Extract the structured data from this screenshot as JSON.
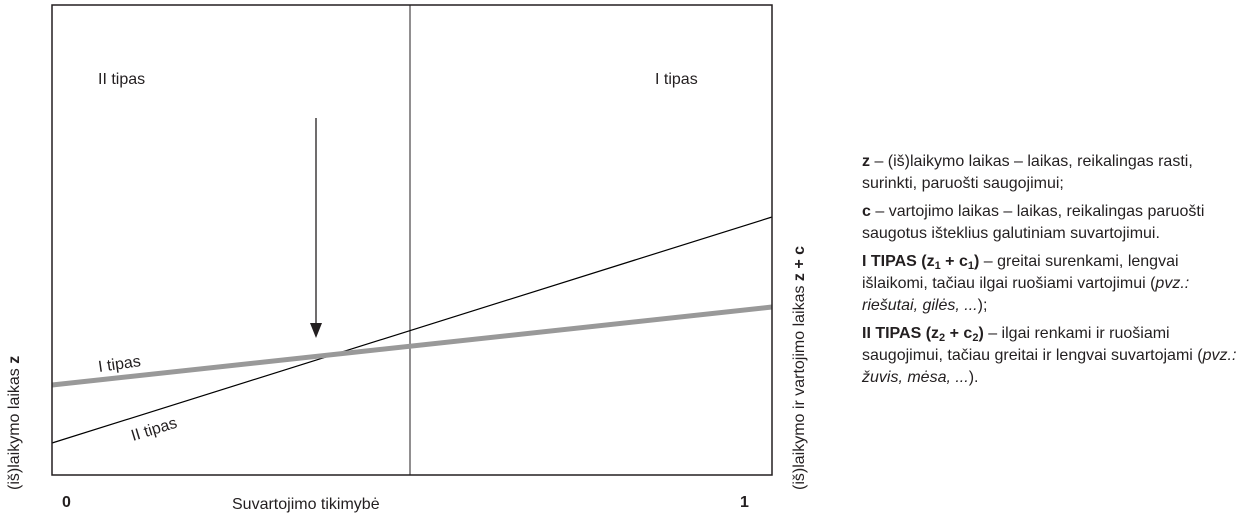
{
  "diagram": {
    "region_left": "II tipas",
    "region_right": "I tipas",
    "y_axis_left": {
      "text": "(iš)laikymo laikas ",
      "bold": "z"
    },
    "y_axis_right": {
      "text": "(iš)laikymo ir vartojimo laikas ",
      "bold": "z + c"
    },
    "x_axis_label": "Suvartojimo tikimybė",
    "x_tick_0": "0",
    "x_tick_1": "1",
    "line_I_label": "I tipas",
    "line_II_label": "II tipas",
    "colors": {
      "line_I": "#999999",
      "line_II": "#000000",
      "frame": "#231f20"
    }
  },
  "legend": {
    "z_sym": "z",
    "z_text": " – (iš)laikymo laikas – laikas, reikalingas rasti, surinkti, paruošti saugojimui;",
    "c_sym": "c",
    "c_text": " – vartojimo laikas – laikas, reikalingas paruošti saugotus išteklius galutiniam suvartojimui.",
    "t1": {
      "title": "I TIPAS (z",
      "sub1": "1",
      "plus": " + c",
      "sub2": "1",
      "close": ")",
      "text": " – greitai surenkami, lengvai išlaikomi, tačiau ilgai ruošiami vartojimui (",
      "example": "pvz.: riešutai, gilės, ...",
      "end": ");"
    },
    "t2": {
      "title": "II TIPAS (z",
      "sub1": "2",
      "plus": " + c",
      "sub2": "2",
      "close": ")",
      "text": " – ilgai renkami ir ruošiami saugojimui, tačiau  greitai ir lengvai suvartojami (",
      "example": "pvz.: žuvis, mėsa, ...",
      "end": ")."
    }
  }
}
